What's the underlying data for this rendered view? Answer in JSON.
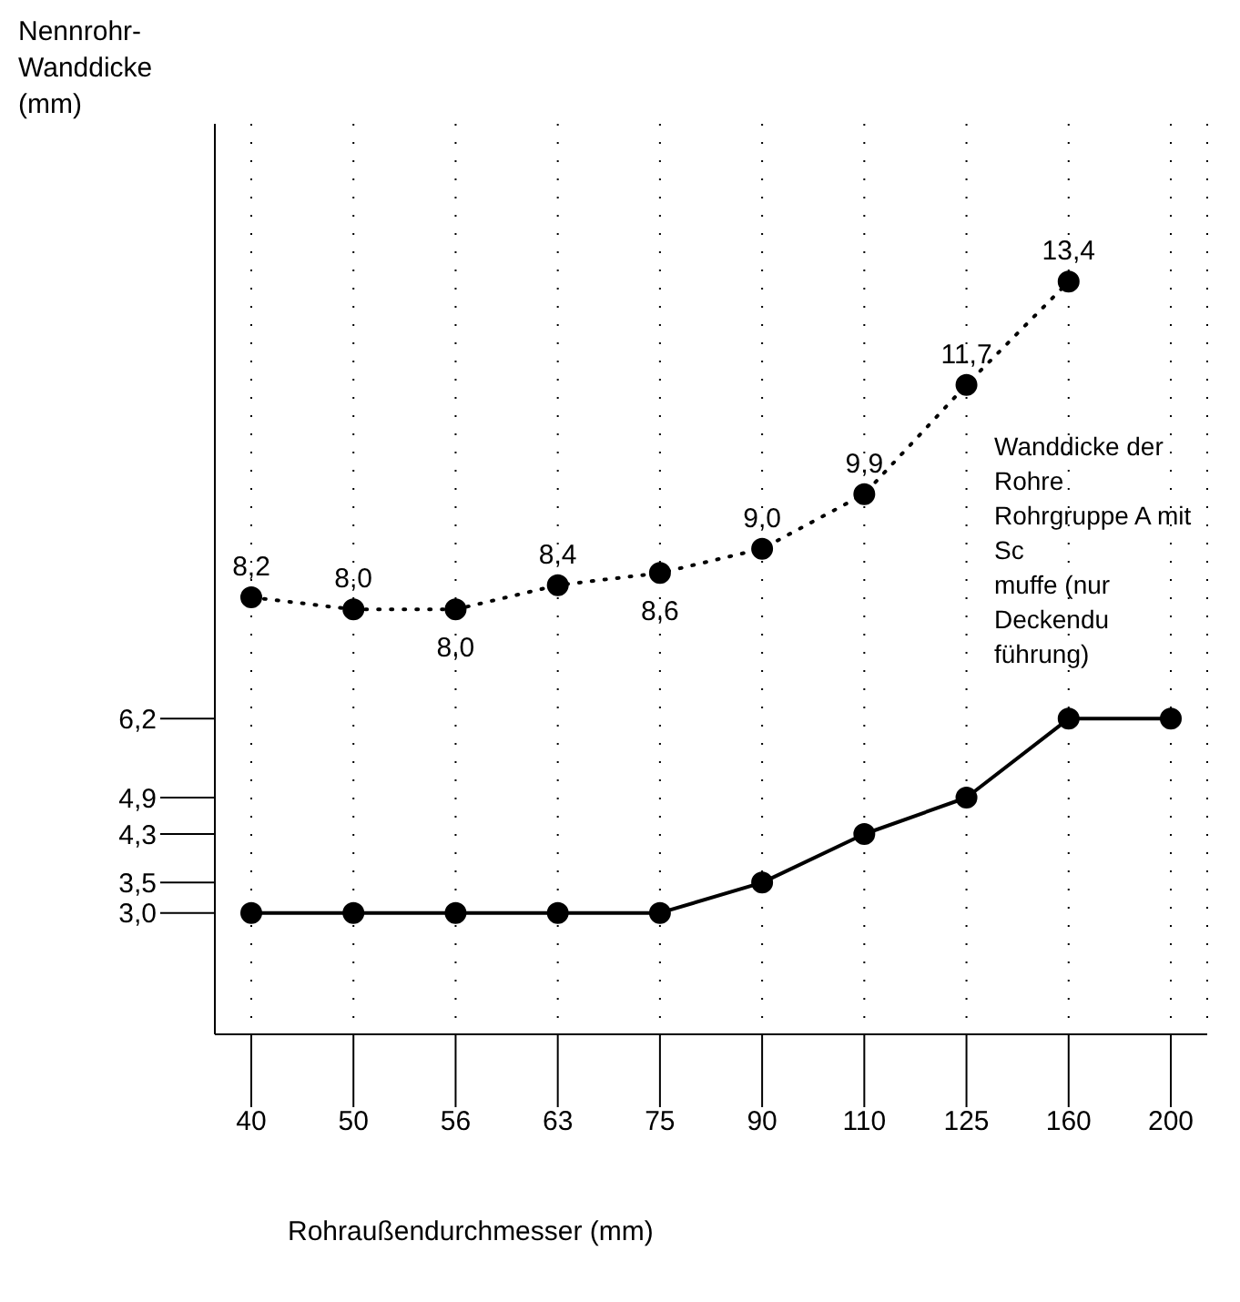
{
  "chart_data": {
    "type": "line",
    "ylabel": "Nennrohr-\nWanddicke\n(mm)",
    "xlabel": "Rohraußendurchmesser (mm)",
    "annotations": [
      "Wanddicke der Rohre\nRohrgruppe A mit Sc\nmuffe (nur Deckendu\nführung)"
    ],
    "categories": [
      "40",
      "50",
      "56",
      "63",
      "75",
      "90",
      "110",
      "125",
      "160",
      "200"
    ],
    "series": [
      {
        "color": "#000000",
        "line_style": "dotted",
        "values": [
          8.2,
          8.0,
          8.0,
          8.4,
          8.6,
          9.0,
          9.9,
          11.7,
          13.4,
          null
        ],
        "value_labels": [
          "8,2",
          "8,0",
          "8,0",
          "8,4",
          "8,6",
          "9,0",
          "9,9",
          "11,7",
          "13,4",
          null
        ]
      },
      {
        "color": "#000000",
        "line_style": "solid",
        "values": [
          3.0,
          3.0,
          3.0,
          3.0,
          3.0,
          3.5,
          4.3,
          4.9,
          6.2,
          6.2
        ]
      }
    ],
    "ylim": [
      1,
      16
    ],
    "yticks": [
      {
        "value": 3,
        "label": "3,0"
      },
      {
        "value": 3.5,
        "label": "3,5"
      },
      {
        "value": 4.3,
        "label": "4,3"
      },
      {
        "value": 4.9,
        "label": "4,9"
      },
      {
        "value": 6.2,
        "label": "6,2"
      }
    ],
    "grid": "x",
    "marker": "circle",
    "legend": false
  }
}
